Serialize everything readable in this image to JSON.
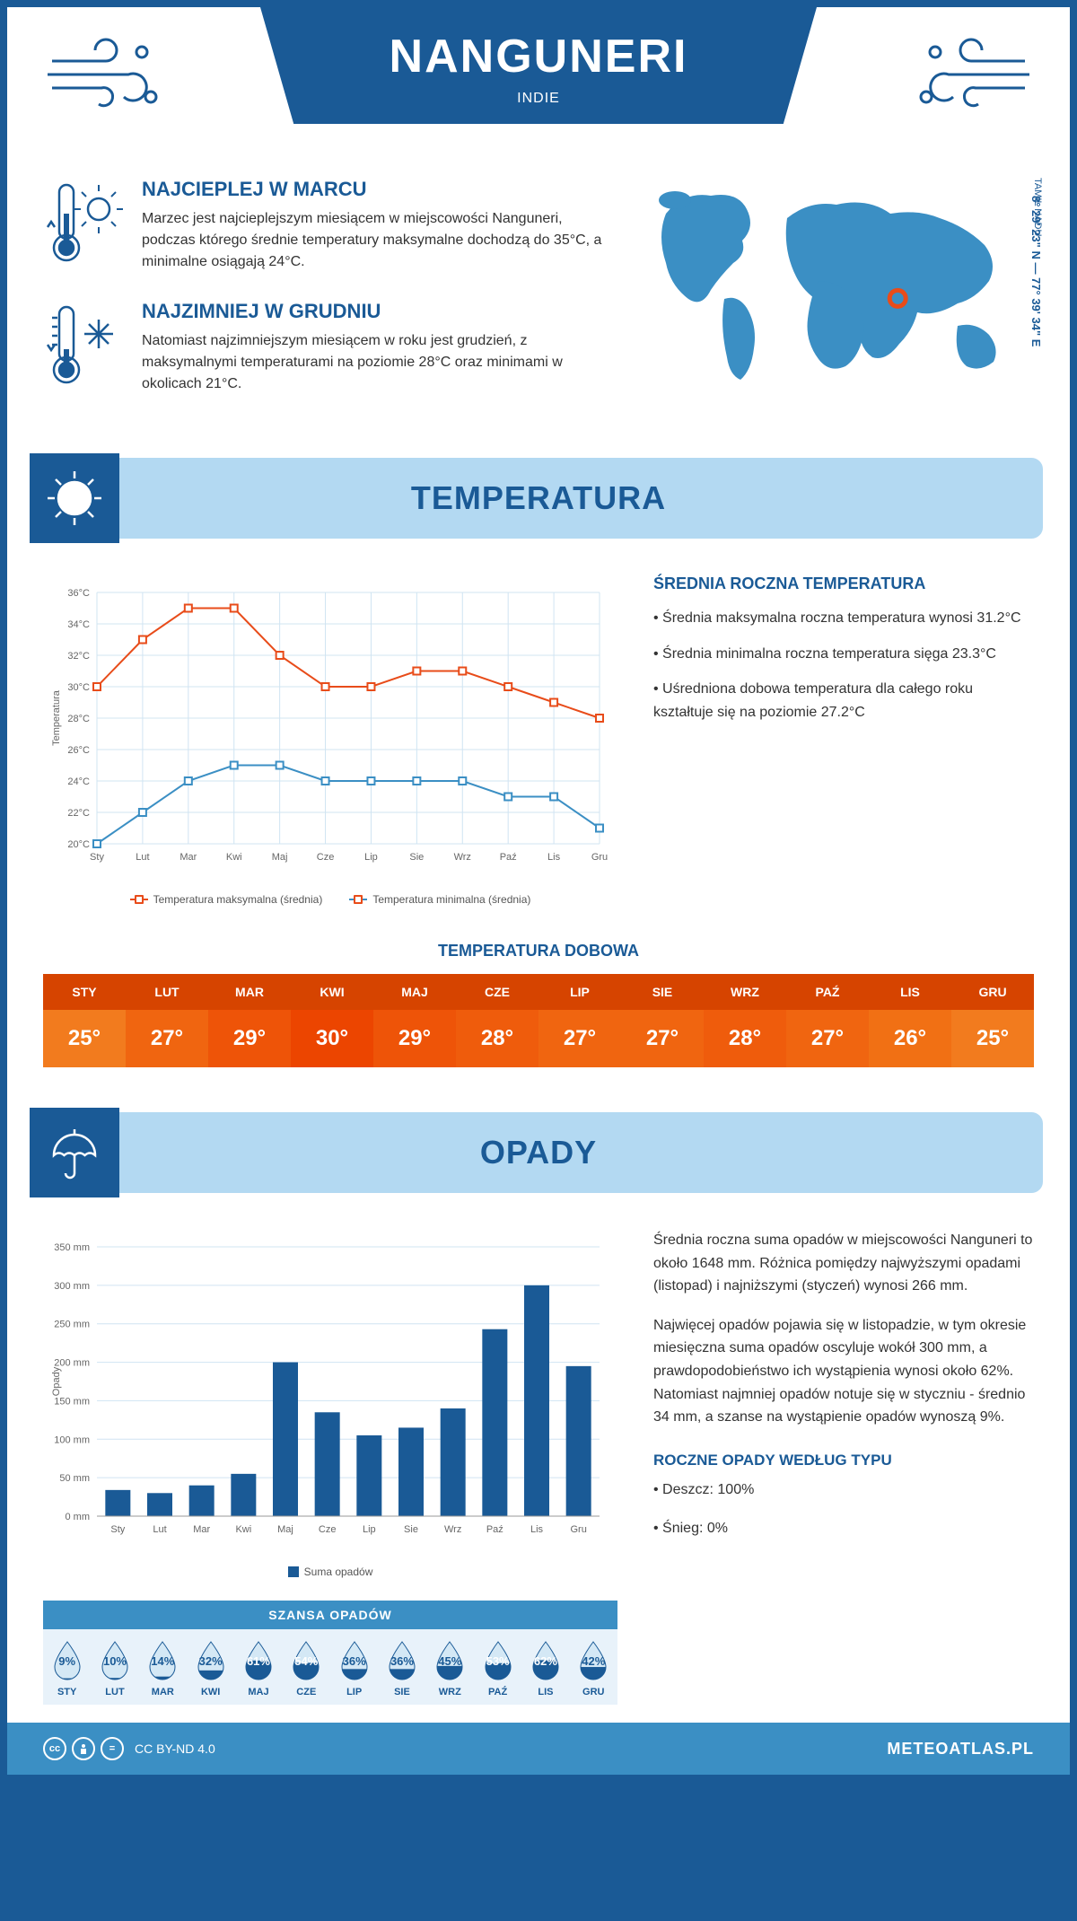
{
  "header": {
    "title": "NANGUNERI",
    "subtitle": "INDIE"
  },
  "intro": {
    "warmest": {
      "title": "NAJCIEPLEJ W MARCU",
      "text": "Marzec jest najcieplejszym miesiącem w miejscowości Nanguneri, podczas którego średnie temperatury maksymalne dochodzą do 35°C, a minimalne osiągają 24°C."
    },
    "coldest": {
      "title": "NAJZIMNIEJ W GRUDNIU",
      "text": "Natomiast najzimniejszym miesiącem w roku jest grudzień, z maksymalnymi temperaturami na poziomie 28°C oraz minimami w okolicach 21°C."
    },
    "region": "TAMIL NADU",
    "coords": "8° 29' 23\" N — 77° 39' 34\" E",
    "map": {
      "marker_color": "#e84c1a",
      "land_color": "#3b8fc4",
      "marker_x": 0.655,
      "marker_y": 0.56
    }
  },
  "temperature": {
    "section_title": "TEMPERATURA",
    "chart": {
      "type": "line",
      "months": [
        "Sty",
        "Lut",
        "Mar",
        "Kwi",
        "Maj",
        "Cze",
        "Lip",
        "Sie",
        "Wrz",
        "Paź",
        "Lis",
        "Gru"
      ],
      "max_series": [
        30,
        33,
        35,
        35,
        32,
        30,
        30,
        31,
        31,
        30,
        29,
        28
      ],
      "min_series": [
        20,
        22,
        24,
        25,
        25,
        24,
        24,
        24,
        24,
        23,
        23,
        21
      ],
      "max_color": "#e84c1a",
      "min_color": "#3b8fc4",
      "grid_color": "#d0e4f2",
      "axis_color": "#1a5a96",
      "ylim": [
        20,
        36
      ],
      "ytick_step": 2,
      "ylabel": "Temperatura",
      "legend_max": "Temperatura maksymalna (średnia)",
      "legend_min": "Temperatura minimalna (średnia)"
    },
    "annual": {
      "title": "ŚREDNIA ROCZNA TEMPERATURA",
      "bullet1": "• Średnia maksymalna roczna temperatura wynosi 31.2°C",
      "bullet2": "• Średnia minimalna roczna temperatura sięga 23.3°C",
      "bullet3": "• Uśredniona dobowa temperatura dla całego roku kształtuje się na poziomie 27.2°C"
    },
    "daily": {
      "title": "TEMPERATURA DOBOWA",
      "months": [
        "STY",
        "LUT",
        "MAR",
        "KWI",
        "MAJ",
        "CZE",
        "LIP",
        "SIE",
        "WRZ",
        "PAŹ",
        "LIS",
        "GRU"
      ],
      "values": [
        "25°",
        "27°",
        "29°",
        "30°",
        "29°",
        "28°",
        "27°",
        "27°",
        "28°",
        "27°",
        "26°",
        "25°"
      ],
      "header_bg": "#d64400",
      "cell_colors": [
        "#f27b1e",
        "#f06510",
        "#ee5408",
        "#ec4500",
        "#ee5408",
        "#ef5c0c",
        "#f06510",
        "#f06510",
        "#ef5c0c",
        "#f06510",
        "#f17014",
        "#f27b1e"
      ]
    }
  },
  "precipitation": {
    "section_title": "OPADY",
    "chart": {
      "type": "bar",
      "months": [
        "Sty",
        "Lut",
        "Mar",
        "Kwi",
        "Maj",
        "Cze",
        "Lip",
        "Sie",
        "Wrz",
        "Paź",
        "Lis",
        "Gru"
      ],
      "values": [
        34,
        30,
        40,
        55,
        200,
        135,
        105,
        115,
        140,
        243,
        300,
        195
      ],
      "bar_color": "#1a5a96",
      "grid_color": "#d0e4f2",
      "ylim": [
        0,
        350
      ],
      "ytick_step": 50,
      "ylabel": "Opady",
      "legend": "Suma opadów"
    },
    "text1": "Średnia roczna suma opadów w miejscowości Nanguneri to około 1648 mm. Różnica pomiędzy najwyższymi opadami (listopad) i najniższymi (styczeń) wynosi 266 mm.",
    "text2": "Najwięcej opadów pojawia się w listopadzie, w tym okresie miesięczna suma opadów oscyluje wokół 300 mm, a prawdopodobieństwo ich wystąpienia wynosi około 62%. Natomiast najmniej opadów notuje się w styczniu - średnio 34 mm, a szanse na wystąpienie opadów wynoszą 9%.",
    "chance": {
      "title": "SZANSA OPADÓW",
      "months": [
        "STY",
        "LUT",
        "MAR",
        "KWI",
        "MAJ",
        "CZE",
        "LIP",
        "SIE",
        "WRZ",
        "PAŹ",
        "LIS",
        "GRU"
      ],
      "values": [
        "9%",
        "10%",
        "14%",
        "32%",
        "61%",
        "54%",
        "36%",
        "36%",
        "45%",
        "53%",
        "62%",
        "42%"
      ],
      "fill_pct": [
        9,
        10,
        14,
        32,
        61,
        54,
        36,
        36,
        45,
        53,
        62,
        42
      ],
      "drop_fill": "#1a5a96",
      "drop_empty": "#d4e8f5"
    },
    "by_type": {
      "title": "ROCZNE OPADY WEDŁUG TYPU",
      "rain": "• Deszcz: 100%",
      "snow": "• Śnieg: 0%"
    }
  },
  "footer": {
    "license": "CC BY-ND 4.0",
    "site": "METEOATLAS.PL"
  },
  "colors": {
    "primary": "#1a5a96",
    "light_blue": "#b3d9f2",
    "mid_blue": "#3b8fc4"
  }
}
